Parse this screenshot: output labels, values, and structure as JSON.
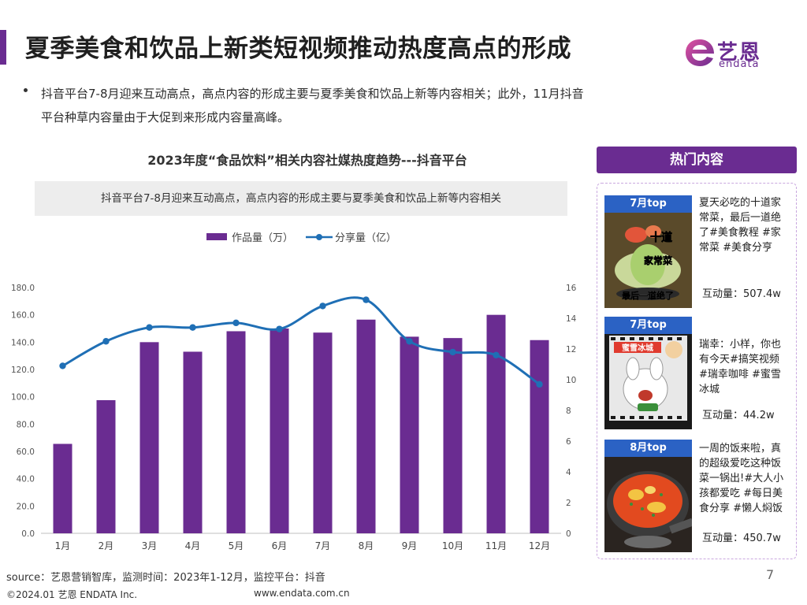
{
  "header": {
    "title": "夏季美食和饮品上新类短视频推动热度高点的形成",
    "logo_cn": "艺恩",
    "logo_en": "endata"
  },
  "bullet": {
    "line1": "抖音平台7-8月迎来互动高点，高点内容的形成主要与夏季美食和饮品上新等内容相关；此外，11月抖音",
    "line2": "平台种草内容量由于大促到来形成内容量高峰。"
  },
  "chart_header": {
    "title": "2023年度“食品饮料”相关内容社媒热度趋势---抖音平台",
    "note": "抖音平台7-8月迎来互动高点，高点内容的形成主要与夏季美食和饮品上新等内容相关"
  },
  "chart_data": {
    "type": "bar+line",
    "categories": [
      "1月",
      "2月",
      "3月",
      "4月",
      "5月",
      "6月",
      "7月",
      "8月",
      "9月",
      "10月",
      "11月",
      "12月"
    ],
    "series": [
      {
        "name": "作品量（万）",
        "type": "bar",
        "axis": "left",
        "color": "#6a2c91",
        "values": [
          65.5,
          97.5,
          140.0,
          133.0,
          148.0,
          150.0,
          147.0,
          156.5,
          144.0,
          143.0,
          160.0,
          141.5
        ]
      },
      {
        "name": "分享量（亿）",
        "type": "line",
        "axis": "right",
        "color": "#1f6fb5",
        "values": [
          10.9,
          12.5,
          13.4,
          13.4,
          13.7,
          13.3,
          14.8,
          15.2,
          12.5,
          11.8,
          11.6,
          9.7
        ]
      }
    ],
    "y_left": {
      "min": 0,
      "max": 180,
      "ticks": [
        "0.0",
        "20.0",
        "40.0",
        "60.0",
        "80.0",
        "100.0",
        "120.0",
        "140.0",
        "160.0",
        "180.0"
      ]
    },
    "y_right": {
      "min": 0,
      "max": 16,
      "ticks": [
        "0",
        "2",
        "4",
        "6",
        "8",
        "10",
        "12",
        "14",
        "16"
      ]
    },
    "legend_position": "top",
    "grid": false
  },
  "hot_content": {
    "header": "热门内容",
    "metric_label": "互动量：",
    "cards": [
      {
        "tag": "7月top",
        "text": "夏天必吃的十道家常菜，最后一道绝了#美食教程 #家常菜 #美食分亨",
        "metric": "507.4w",
        "overlay_top": "十道",
        "overlay_mid": "家常菜",
        "overlay_bottom": "最后一道绝了"
      },
      {
        "tag": "7月top",
        "text": "瑞幸：小样，你也有今天#搞笑视频 #瑞幸咖啡 #蜜雪冰城",
        "metric": "44.2w",
        "overlay_top": "蜜雪冰城"
      },
      {
        "tag": "8月top",
        "text": "一周的饭来啦，真的超级爱吃这种饭菜一锅出!#大人小孩都爱吃 #每日美食分享 #懒人焖饭",
        "metric": "450.7w"
      }
    ]
  },
  "footer": {
    "source": "source：艺恩营销智库，监测时间：2023年1-12月，监控平台：抖音",
    "page": "7",
    "copyright": "©2024.01  艺恩 ENDATA Inc.",
    "website": "www.endata.com.cn"
  }
}
